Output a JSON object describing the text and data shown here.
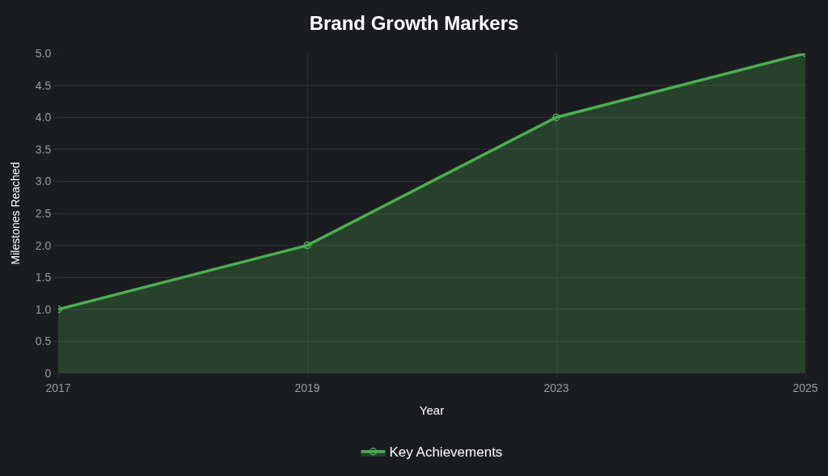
{
  "chart_data": {
    "type": "area",
    "title": "Brand Growth Markers",
    "xlabel": "Year",
    "ylabel": "Milestones Reached",
    "categories": [
      "2017",
      "2019",
      "2023",
      "2025"
    ],
    "series": [
      {
        "name": "Key Achievements",
        "color": "#4caf50",
        "values": [
          1,
          2,
          4,
          5
        ]
      }
    ],
    "ylim": [
      0,
      5
    ],
    "yticks": [
      0,
      {
        "value": 0.5,
        "label": "0.5"
      },
      {
        "value": 1,
        "label": "1.0"
      },
      {
        "value": 1.5,
        "label": "1.5"
      },
      {
        "value": 2,
        "label": "2.0"
      },
      {
        "value": 2.5,
        "label": "2.5"
      },
      {
        "value": 3,
        "label": "3.0"
      },
      {
        "value": 3.5,
        "label": "3.5"
      },
      {
        "value": 4,
        "label": "4.0"
      },
      {
        "value": 4.5,
        "label": "4.5"
      },
      {
        "value": 5,
        "label": "5.0"
      }
    ],
    "grid": true,
    "legend": "bottom",
    "marker": "circle",
    "line_style": "solid"
  }
}
